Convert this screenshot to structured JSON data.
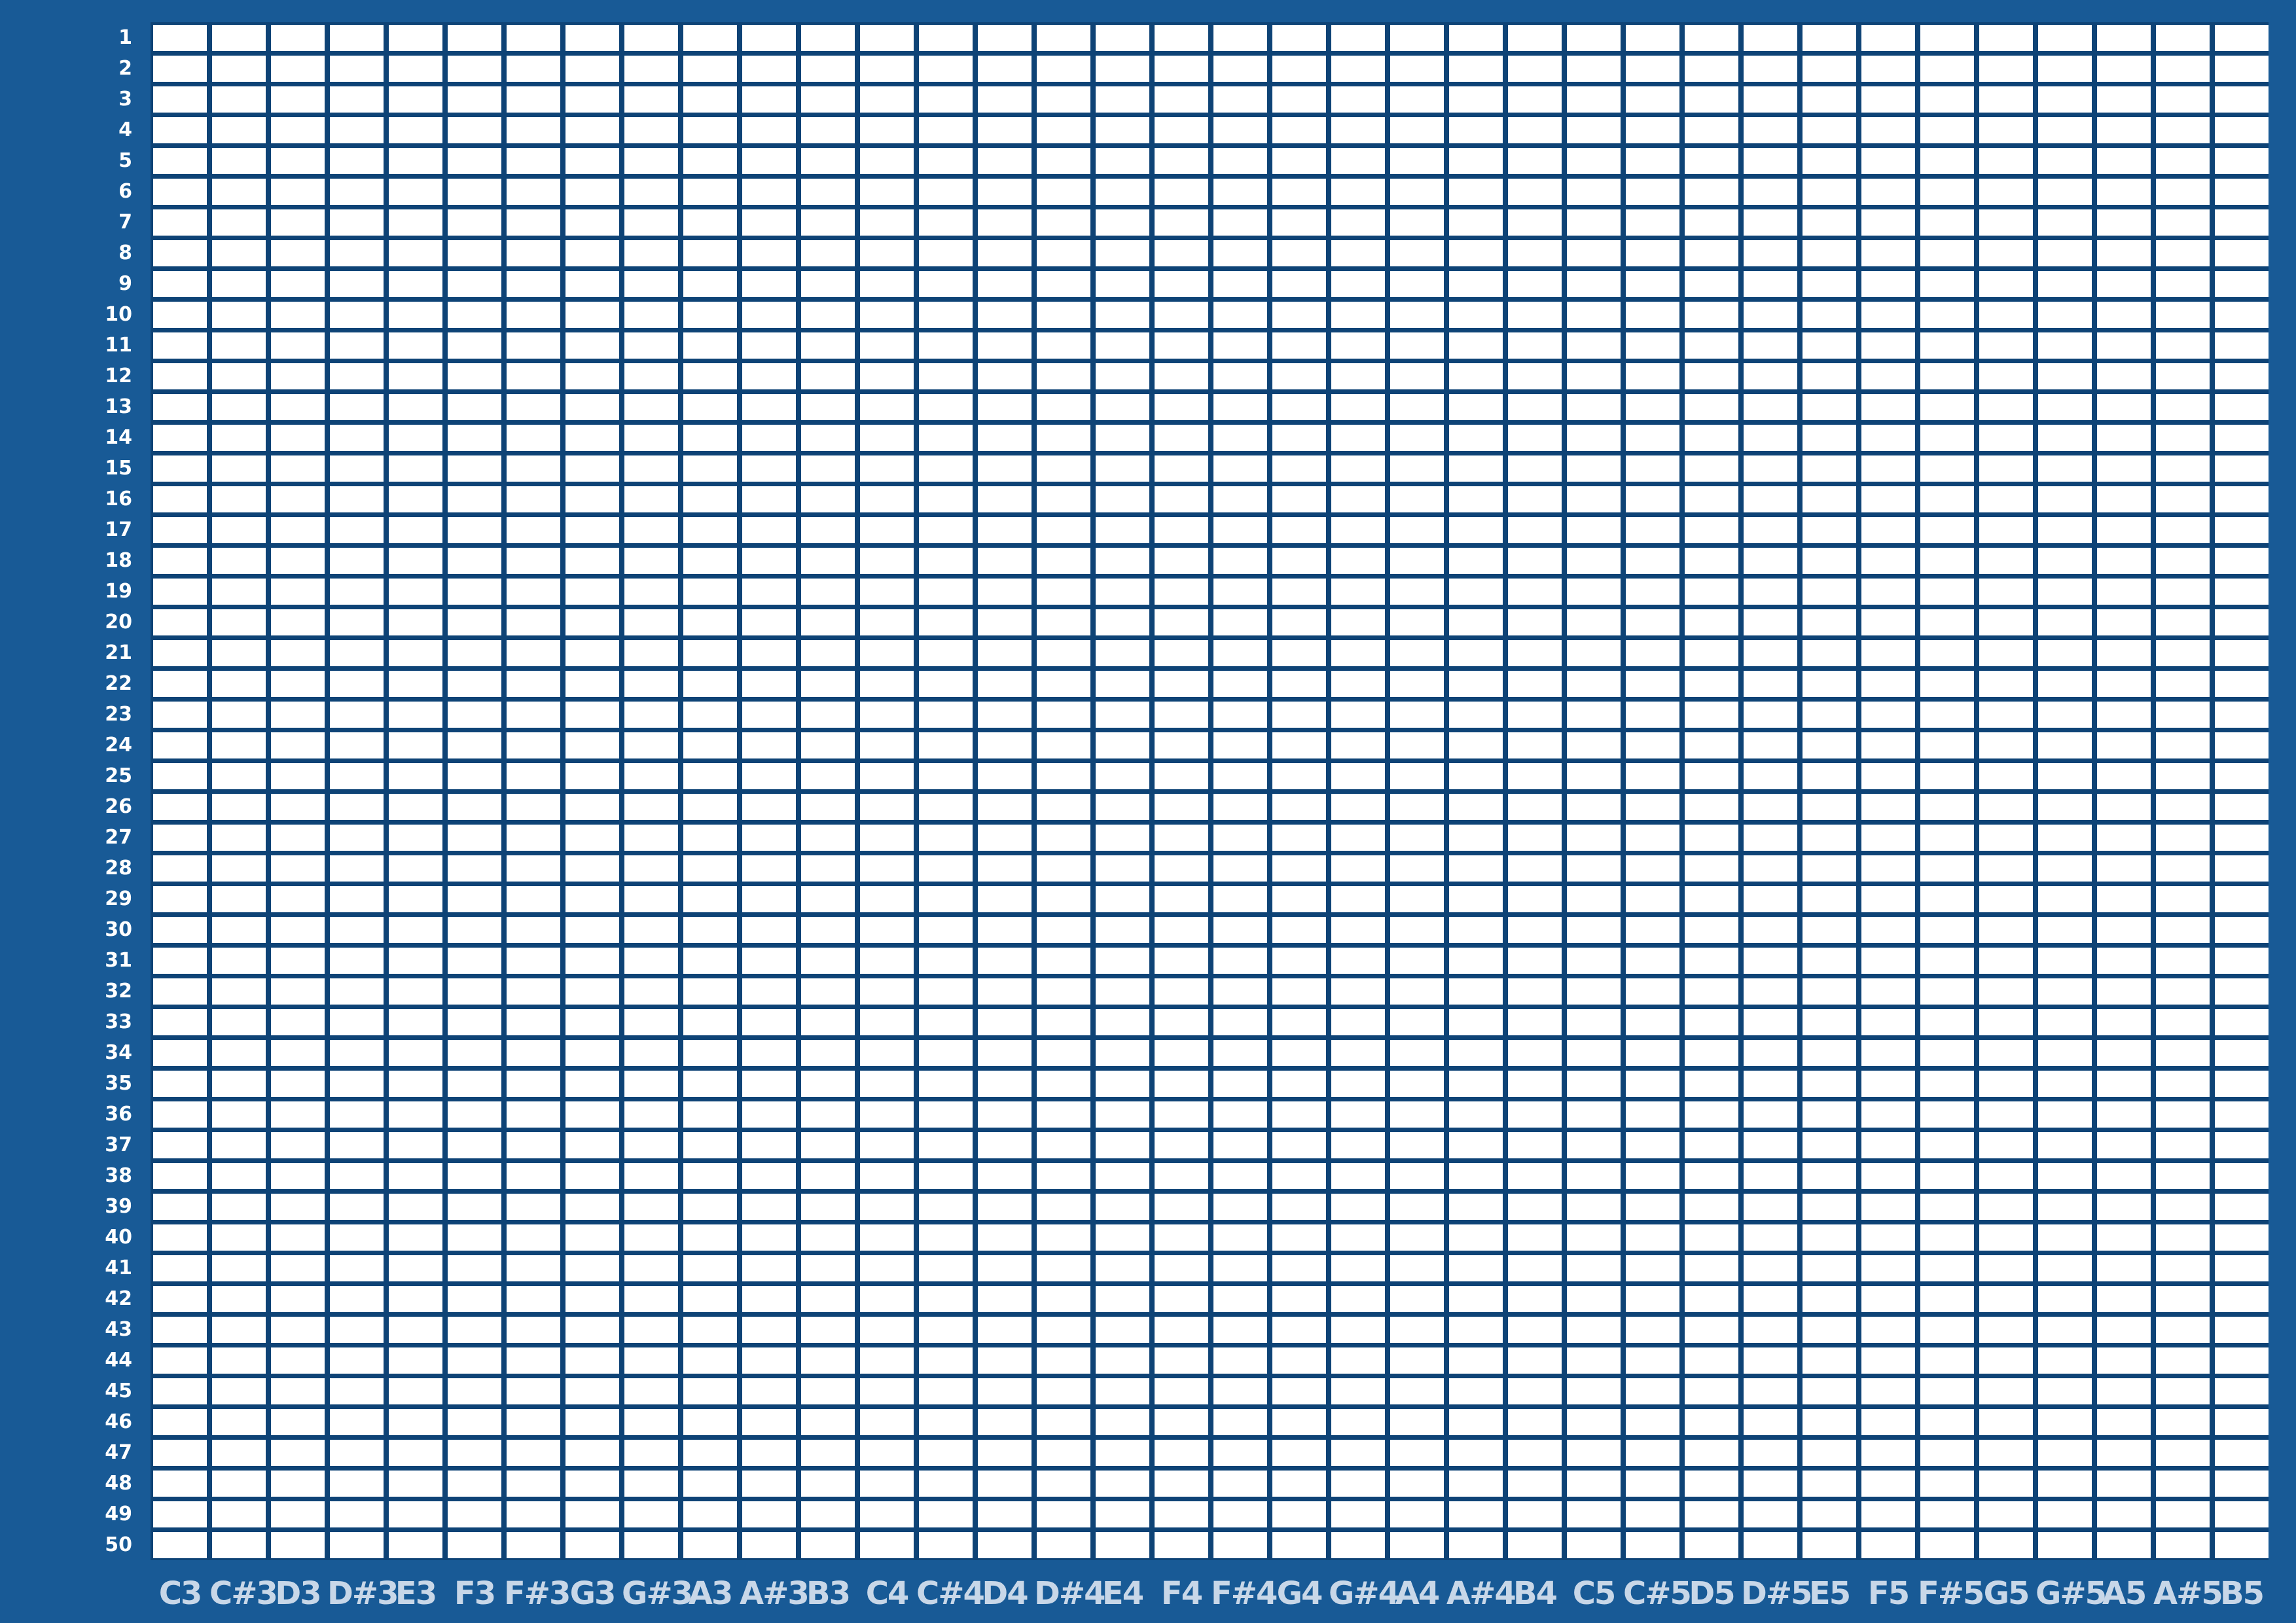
{
  "colors": {
    "background": "#185a96",
    "grid_lines": "#0e4376",
    "cell": "#ffffff",
    "row_label": "#ffffff",
    "column_label": "#c8d7e8"
  },
  "grid": {
    "rows": [
      "1",
      "2",
      "3",
      "4",
      "5",
      "6",
      "7",
      "8",
      "9",
      "10",
      "11",
      "12",
      "13",
      "14",
      "15",
      "16",
      "17",
      "18",
      "19",
      "20",
      "21",
      "22",
      "23",
      "24",
      "25",
      "26",
      "27",
      "28",
      "29",
      "30",
      "31",
      "32",
      "33",
      "34",
      "35",
      "36",
      "37",
      "38",
      "39",
      "40",
      "41",
      "42",
      "43",
      "44",
      "45",
      "46",
      "47",
      "48",
      "49",
      "50"
    ],
    "columns": [
      "C3",
      "C#3",
      "D3",
      "D#3",
      "E3",
      "F3",
      "F#3",
      "G3",
      "G#3",
      "A3",
      "A#3",
      "B3",
      "C4",
      "C#4",
      "D4",
      "D#4",
      "E4",
      "F4",
      "F#4",
      "G4",
      "G#4",
      "A4",
      "A#4",
      "B4",
      "C5",
      "C#5",
      "D5",
      "D#5",
      "E5",
      "F5",
      "F#5",
      "G5",
      "G#5",
      "A5",
      "A#5",
      "B5"
    ]
  }
}
